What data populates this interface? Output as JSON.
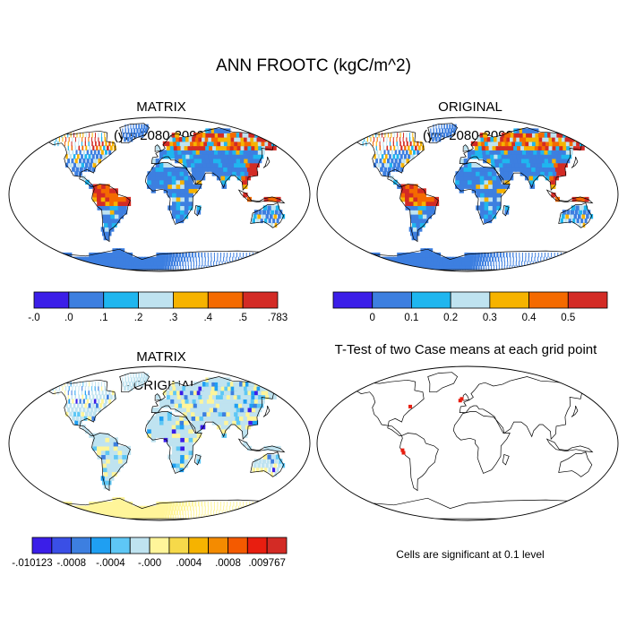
{
  "figure_title": "ANN FROOTC (kgC/m^2)",
  "panels": [
    {
      "id": "matrix",
      "title": "MATRIX",
      "subtitle": "(yrs 2080-2099)",
      "colorbar": {
        "colors": [
          "#3b1ee8",
          "#3d7fe0",
          "#1fb6ef",
          "#bfe3f0",
          "#f6b300",
          "#f46a00",
          "#d32b25"
        ],
        "labels": [
          "-.0",
          ".0",
          ".1",
          ".2",
          ".3",
          ".4",
          ".5",
          ".783"
        ]
      }
    },
    {
      "id": "original",
      "title": "ORIGINAL",
      "subtitle": "(yrs 2080-2099)",
      "colorbar": {
        "colors": [
          "#3b1ee8",
          "#3d7fe0",
          "#1fb6ef",
          "#bfe3f0",
          "#f6b300",
          "#f46a00",
          "#d32b25"
        ],
        "labels": [
          "0",
          "0.1",
          "0.2",
          "0.3",
          "0.4",
          "0.5"
        ]
      }
    },
    {
      "id": "difference",
      "title": "MATRIX",
      "subtitle": "- ORIGINAL",
      "colorbar": {
        "colors": [
          "#3b1ee8",
          "#3a4fe6",
          "#3d7fe0",
          "#1f9ff2",
          "#5ec7f5",
          "#bfe3f0",
          "#fff59a",
          "#f6d94a",
          "#f6b300",
          "#f48b00",
          "#f45a00",
          "#e81e10",
          "#d32b25"
        ],
        "labels": [
          "-.010123",
          "-.0008",
          "-.0004",
          "-.000",
          ".0004",
          ".0008",
          ".009767"
        ]
      }
    },
    {
      "id": "ttest",
      "title": "T-Test of two Case means at each grid point",
      "footnote": "Cells are significant at 0.1 level"
    }
  ]
}
